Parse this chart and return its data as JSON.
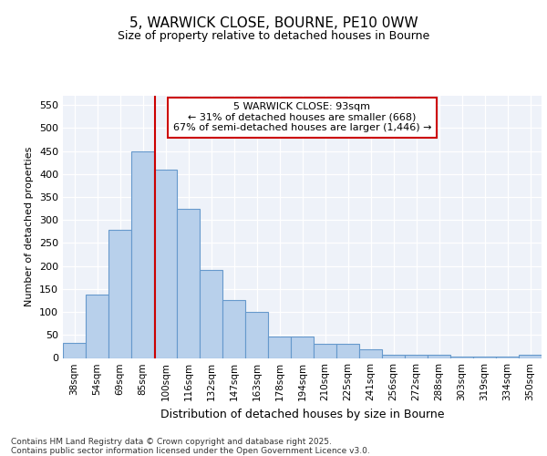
{
  "title1": "5, WARWICK CLOSE, BOURNE, PE10 0WW",
  "title2": "Size of property relative to detached houses in Bourne",
  "xlabel": "Distribution of detached houses by size in Bourne",
  "ylabel": "Number of detached properties",
  "categories": [
    "38sqm",
    "54sqm",
    "69sqm",
    "85sqm",
    "100sqm",
    "116sqm",
    "132sqm",
    "147sqm",
    "163sqm",
    "178sqm",
    "194sqm",
    "210sqm",
    "225sqm",
    "241sqm",
    "256sqm",
    "272sqm",
    "288sqm",
    "303sqm",
    "319sqm",
    "334sqm",
    "350sqm"
  ],
  "values": [
    33,
    137,
    278,
    450,
    410,
    325,
    191,
    125,
    101,
    46,
    46,
    31,
    31,
    18,
    7,
    7,
    7,
    3,
    2,
    2,
    6
  ],
  "bar_color": "#b8d0eb",
  "bar_edge_color": "#6699cc",
  "vline_color": "#cc0000",
  "annotation_text_line1": "5 WARWICK CLOSE: 93sqm",
  "annotation_text_line2": "← 31% of detached houses are smaller (668)",
  "annotation_text_line3": "67% of semi-detached houses are larger (1,446) →",
  "annotation_box_color": "#ffffff",
  "annotation_box_edge": "#cc0000",
  "footer1": "Contains HM Land Registry data © Crown copyright and database right 2025.",
  "footer2": "Contains public sector information licensed under the Open Government Licence v3.0.",
  "ylim": [
    0,
    570
  ],
  "yticks": [
    0,
    50,
    100,
    150,
    200,
    250,
    300,
    350,
    400,
    450,
    500,
    550
  ],
  "bg_color": "#eef2f9",
  "grid_color": "#ffffff",
  "fig_bg": "#ffffff"
}
